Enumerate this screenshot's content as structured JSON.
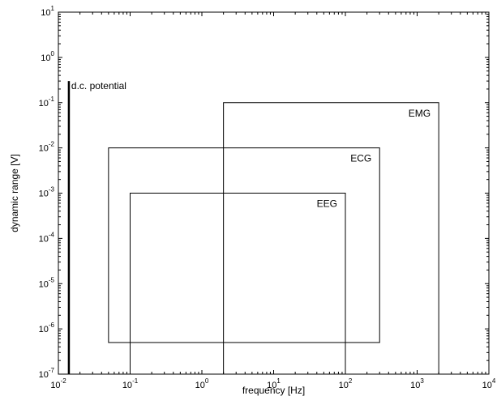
{
  "chart_data": {
    "type": "line",
    "title": "",
    "xlabel": "frequency [Hz]",
    "ylabel": "dynamic range [V]",
    "x_scale": "log",
    "y_scale": "log",
    "xlim": [
      0.01,
      10000
    ],
    "ylim": [
      1e-07,
      10
    ],
    "grid": false,
    "x_ticks": [
      {
        "value": 0.01,
        "base": "10",
        "exp": "-2"
      },
      {
        "value": 0.1,
        "base": "10",
        "exp": "-1"
      },
      {
        "value": 1,
        "base": "10",
        "exp": "0"
      },
      {
        "value": 10,
        "base": "10",
        "exp": "1"
      },
      {
        "value": 100,
        "base": "10",
        "exp": "2"
      },
      {
        "value": 1000,
        "base": "10",
        "exp": "3"
      },
      {
        "value": 10000,
        "base": "10",
        "exp": "4"
      }
    ],
    "y_ticks": [
      {
        "value": 1e-07,
        "base": "10",
        "exp": "-7"
      },
      {
        "value": 1e-06,
        "base": "10",
        "exp": "-6"
      },
      {
        "value": 1e-05,
        "base": "10",
        "exp": "-5"
      },
      {
        "value": 0.0001,
        "base": "10",
        "exp": "-4"
      },
      {
        "value": 0.001,
        "base": "10",
        "exp": "-3"
      },
      {
        "value": 0.01,
        "base": "10",
        "exp": "-2"
      },
      {
        "value": 0.1,
        "base": "10",
        "exp": "-1"
      },
      {
        "value": 1,
        "base": "10",
        "exp": "0"
      },
      {
        "value": 10,
        "base": "10",
        "exp": "1"
      }
    ],
    "regions": [
      {
        "name": "EMG",
        "x": [
          2,
          2000
        ],
        "y": [
          1e-07,
          0.1
        ]
      },
      {
        "name": "ECG",
        "x": [
          0.05,
          300
        ],
        "y": [
          5e-07,
          0.01
        ]
      },
      {
        "name": "EEG",
        "x": [
          0.1,
          100
        ],
        "y": [
          1e-07,
          0.001
        ]
      }
    ],
    "dc_line": {
      "label": "d.c. potential",
      "x": 0.014,
      "y": [
        1e-07,
        0.3
      ]
    }
  }
}
